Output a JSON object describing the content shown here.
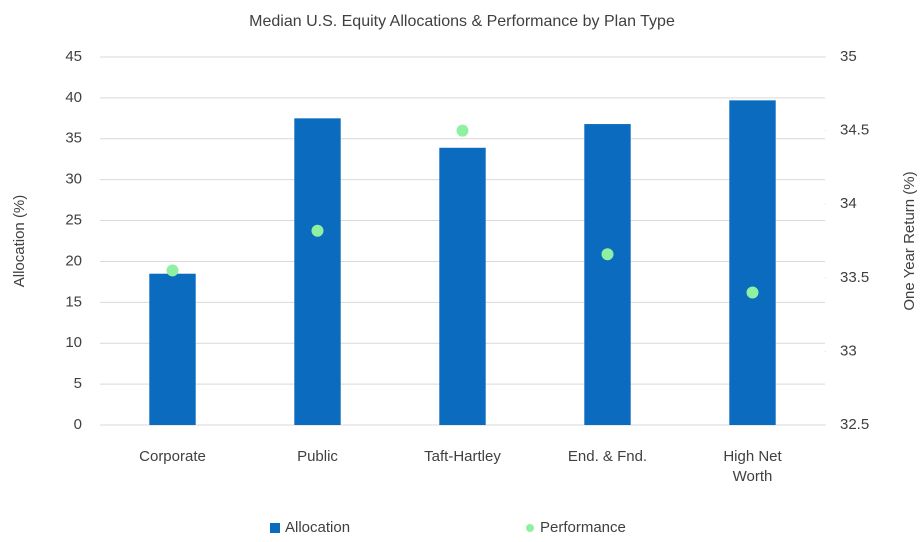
{
  "chart_data": {
    "type": "bar",
    "title": "Median U.S. Equity Allocations & Performance by Plan Type",
    "y_label": "Allocation (%)",
    "y2_label": "One Year Return (%)",
    "categories": [
      "Corporate",
      "Public",
      "Taft-Hartley",
      "End. & Fnd.",
      "High Net Worth"
    ],
    "series": [
      {
        "name": "Allocation",
        "type": "bar",
        "color": "#0b6cbf",
        "axis": "y",
        "values": [
          18.5,
          37.5,
          33.9,
          36.8,
          39.7
        ]
      },
      {
        "name": "Performance",
        "type": "scatter",
        "color": "#8ef0a0",
        "axis": "y2",
        "values": [
          33.55,
          33.82,
          34.5,
          33.66,
          33.4
        ]
      }
    ],
    "ylim": [
      0,
      45
    ],
    "yticks": [
      0,
      5,
      10,
      15,
      20,
      25,
      30,
      35,
      40,
      45
    ],
    "y2lim": [
      32.5,
      35
    ],
    "y2ticks": [
      32.5,
      33,
      33.5,
      34,
      34.5,
      35
    ],
    "grid": true,
    "legend": "bottom"
  }
}
